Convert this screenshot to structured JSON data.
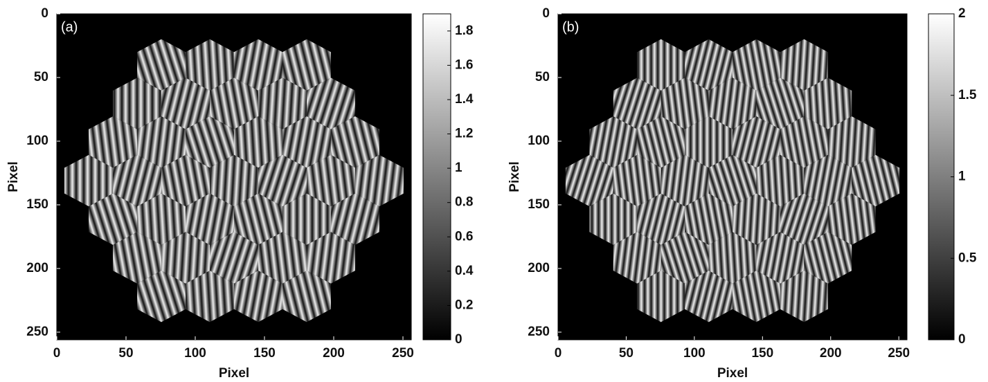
{
  "chart_data": [
    {
      "type": "image",
      "label": "(a)",
      "xlabel": "Pixel",
      "ylabel": "Pixel",
      "xlim": [
        0,
        256
      ],
      "ylim": [
        0,
        256
      ],
      "yreverse": true,
      "xticks": [
        0,
        50,
        100,
        150,
        200,
        250
      ],
      "yticks": [
        0,
        50,
        100,
        150,
        200,
        250
      ],
      "colormap": "gray",
      "clim": [
        0,
        1.9
      ],
      "cticks": [
        0,
        0.2,
        0.4,
        0.6,
        0.8,
        1,
        1.2,
        1.4,
        1.6,
        1.8
      ]
    },
    {
      "type": "image",
      "label": "(b)",
      "xlabel": "Pixel",
      "ylabel": "Pixel",
      "xlim": [
        0,
        256
      ],
      "ylim": [
        0,
        256
      ],
      "yreverse": true,
      "xticks": [
        0,
        50,
        100,
        150,
        200,
        250
      ],
      "yticks": [
        0,
        50,
        100,
        150,
        200,
        250
      ],
      "colormap": "gray",
      "clim": [
        0,
        2
      ],
      "cticks": [
        0,
        0.5,
        1,
        1.5,
        2
      ]
    }
  ]
}
